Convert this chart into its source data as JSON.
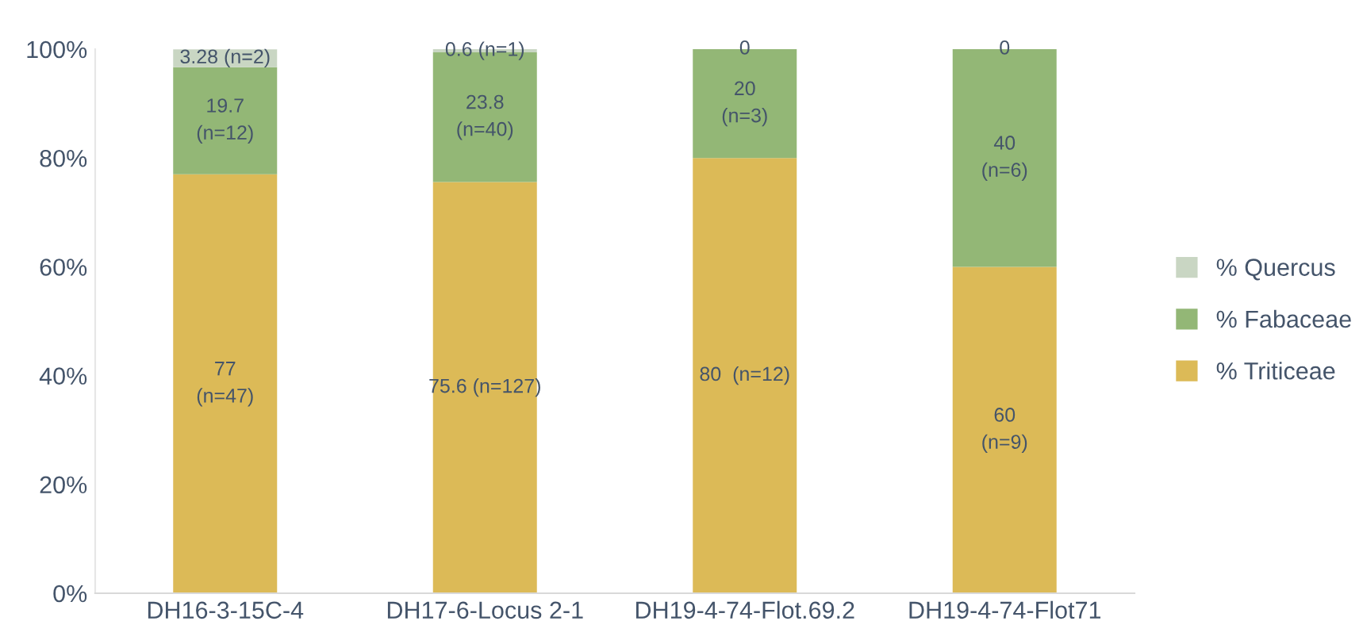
{
  "chart_data": {
    "type": "bar",
    "stacked": true,
    "categories": [
      "DH16-3-15C-4",
      "DH17-6-Locus 2-1",
      "DH19-4-74-Flot.69.2",
      "DH19-4-74-Flot71"
    ],
    "series": [
      {
        "name": "% Triticeae",
        "color": "#dcba57",
        "values": [
          77,
          75.6,
          80,
          60
        ],
        "value_labels": [
          "77\n(n=47)",
          "75.6 (n=127)",
          "80  (n=12)",
          "60\n(n=9)"
        ]
      },
      {
        "name": "% Fabaceae",
        "color": "#93b776",
        "values": [
          19.7,
          23.8,
          20,
          40
        ],
        "value_labels": [
          "19.7\n(n=12)",
          "23.8\n(n=40)",
          "20\n(n=3)",
          "40\n(n=6)"
        ]
      },
      {
        "name": "% Quercus",
        "color": "#c9d6c3",
        "values": [
          3.28,
          0.6,
          0,
          0
        ],
        "value_labels": [
          "3.28 (n=2)",
          "0.6 (n=1)",
          "0",
          "0"
        ]
      }
    ],
    "ylim": [
      0,
      100
    ],
    "yticks": [
      {
        "value": 0,
        "label": "0%"
      },
      {
        "value": 20,
        "label": "20%"
      },
      {
        "value": 40,
        "label": "40%"
      },
      {
        "value": 60,
        "label": "60%"
      },
      {
        "value": 80,
        "label": "80%"
      },
      {
        "value": 100,
        "label": "100%"
      }
    ],
    "legend": "right",
    "grid": false
  }
}
